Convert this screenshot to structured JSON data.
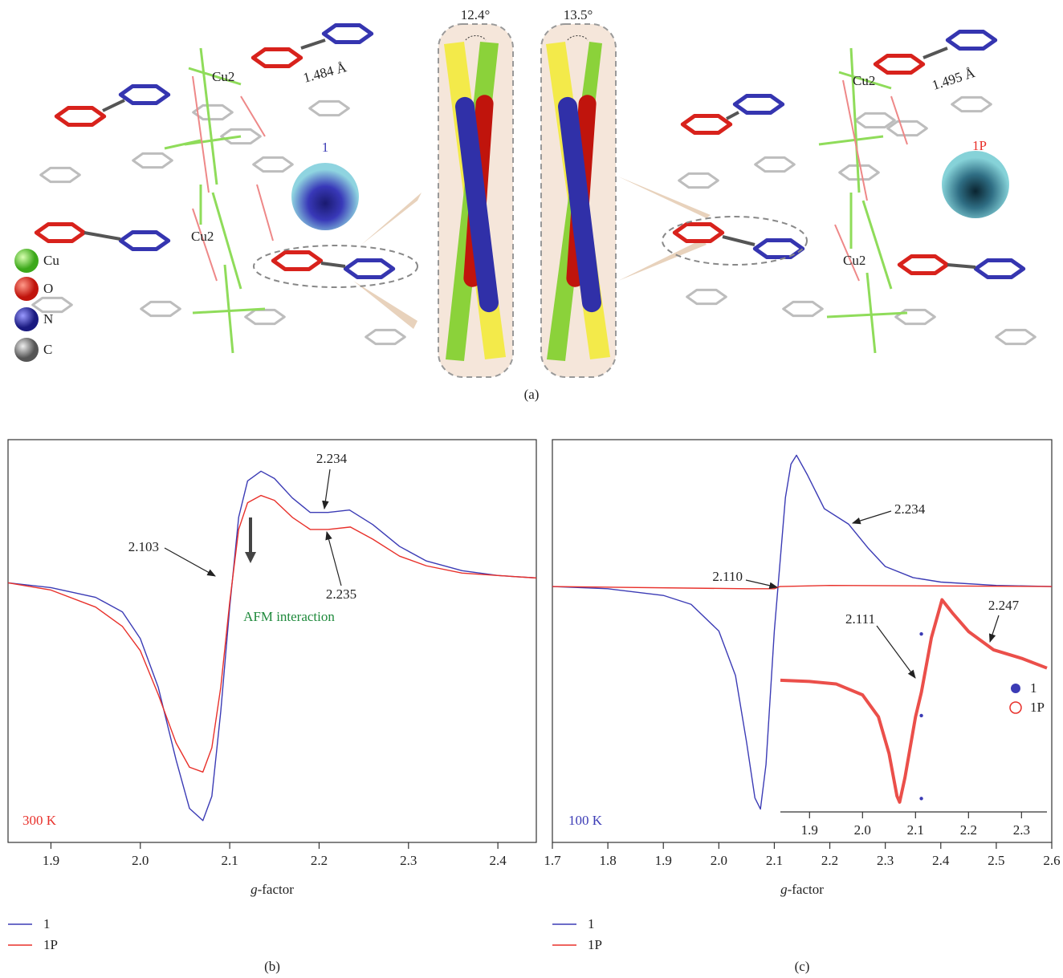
{
  "panel_a": {
    "angles": [
      "12.4°",
      "13.5°"
    ],
    "bond_lengths": [
      "1.484 Å",
      "1.495 Å"
    ],
    "cu_labels": [
      "Cu2",
      "Cu2",
      "Cu2",
      "Cu2"
    ],
    "crystal_labels": [
      "1",
      "1P"
    ],
    "legend": [
      "Cu",
      "O",
      "N",
      "C"
    ],
    "caption": "(a)"
  },
  "chart_data": [
    {
      "type": "line",
      "caption": "(b)",
      "xlabel": "g-factor",
      "xlim": [
        1.852,
        2.443
      ],
      "ylim": [
        -1.09,
        0.57
      ],
      "xticks": [
        1.9,
        {
          "value": 2,
          "label": "2.0"
        },
        2.1,
        2.2,
        2.3,
        2.4
      ],
      "annotations": [
        "2.103",
        "2.234",
        "2.235",
        "AFM interaction",
        "300 K"
      ],
      "series": [
        {
          "name": "1",
          "color": "#3b3bb5",
          "x": [
            1.852,
            1.9,
            1.95,
            1.98,
            2.0,
            2.02,
            2.04,
            2.055,
            2.07,
            2.08,
            2.09,
            2.1,
            2.11,
            2.12,
            2.135,
            2.15,
            2.17,
            2.19,
            2.21,
            2.234,
            2.26,
            2.29,
            2.32,
            2.36,
            2.4,
            2.443
          ],
          "values": [
            -0.02,
            -0.04,
            -0.08,
            -0.14,
            -0.25,
            -0.45,
            -0.75,
            -0.95,
            -1.0,
            -0.9,
            -0.55,
            -0.12,
            0.25,
            0.4,
            0.44,
            0.41,
            0.33,
            0.27,
            0.27,
            0.28,
            0.22,
            0.13,
            0.07,
            0.03,
            0.01,
            0
          ]
        },
        {
          "name": "1P",
          "color": "#e8302a",
          "x": [
            1.852,
            1.9,
            1.95,
            1.98,
            2.0,
            2.02,
            2.04,
            2.055,
            2.07,
            2.08,
            2.09,
            2.1,
            2.11,
            2.12,
            2.135,
            2.15,
            2.17,
            2.19,
            2.21,
            2.235,
            2.26,
            2.29,
            2.32,
            2.36,
            2.4,
            2.443
          ],
          "values": [
            -0.02,
            -0.05,
            -0.12,
            -0.2,
            -0.3,
            -0.48,
            -0.68,
            -0.78,
            -0.8,
            -0.7,
            -0.45,
            -0.1,
            0.2,
            0.31,
            0.34,
            0.32,
            0.25,
            0.2,
            0.2,
            0.21,
            0.16,
            0.09,
            0.05,
            0.02,
            0.01,
            0
          ]
        }
      ]
    },
    {
      "type": "line",
      "caption": "(c)",
      "xlabel": "g-factor",
      "xlim": [
        1.7,
        2.6
      ],
      "ylim": [
        -1.15,
        0.66
      ],
      "xticks": [
        1.7,
        1.8,
        1.9,
        {
          "value": 2,
          "label": "2.0"
        },
        2.1,
        2.2,
        2.3,
        2.4,
        2.5,
        2.6
      ],
      "annotations": [
        "2.110",
        "2.234",
        "100 K"
      ],
      "series": [
        {
          "name": "1",
          "color": "#3b3bb5",
          "x": [
            1.7,
            1.8,
            1.9,
            1.95,
            2.0,
            2.03,
            2.05,
            2.065,
            2.075,
            2.085,
            2.1,
            2.11,
            2.12,
            2.13,
            2.14,
            2.16,
            2.19,
            2.234,
            2.27,
            2.3,
            2.35,
            2.4,
            2.5,
            2.6
          ],
          "values": [
            0,
            -0.01,
            -0.04,
            -0.08,
            -0.2,
            -0.4,
            -0.7,
            -0.95,
            -1.0,
            -0.8,
            -0.2,
            0.1,
            0.4,
            0.55,
            0.59,
            0.5,
            0.35,
            0.28,
            0.17,
            0.09,
            0.04,
            0.02,
            0.005,
            0
          ]
        },
        {
          "name": "1P",
          "color": "#e8302a",
          "x": [
            1.7,
            2.05,
            2.1,
            2.11,
            2.2,
            2.6
          ],
          "values": [
            0,
            -0.01,
            -0.01,
            0,
            0.005,
            0
          ]
        }
      ]
    },
    {
      "type": "line",
      "xlim": [
        1.845,
        2.348
      ],
      "ylim": [
        -1.08,
        0.71
      ],
      "xticks": [
        1.9,
        {
          "value": 2,
          "label": "2.0"
        },
        2.1,
        2.2,
        2.3
      ],
      "annotations": [
        "2.111",
        "2.247"
      ],
      "series": [
        {
          "name": "1",
          "color": "#3b3bb5",
          "marker": "dot",
          "x": [
            2.111,
            2.111,
            2.111
          ],
          "values": [
            0.38,
            -0.29,
            -0.97
          ]
        },
        {
          "name": "1P",
          "color": "#e8302a",
          "marker": "open-circle",
          "x": [
            1.845,
            1.9,
            1.95,
            2.0,
            2.03,
            2.05,
            2.065,
            2.07,
            2.08,
            2.1,
            2.111,
            2.13,
            2.15,
            2.17,
            2.2,
            2.247,
            2.3,
            2.348
          ],
          "values": [
            0,
            -0.01,
            -0.03,
            -0.12,
            -0.3,
            -0.6,
            -0.95,
            -1.0,
            -0.8,
            -0.3,
            -0.1,
            0.35,
            0.66,
            0.55,
            0.4,
            0.25,
            0.18,
            0.1
          ]
        }
      ]
    }
  ]
}
